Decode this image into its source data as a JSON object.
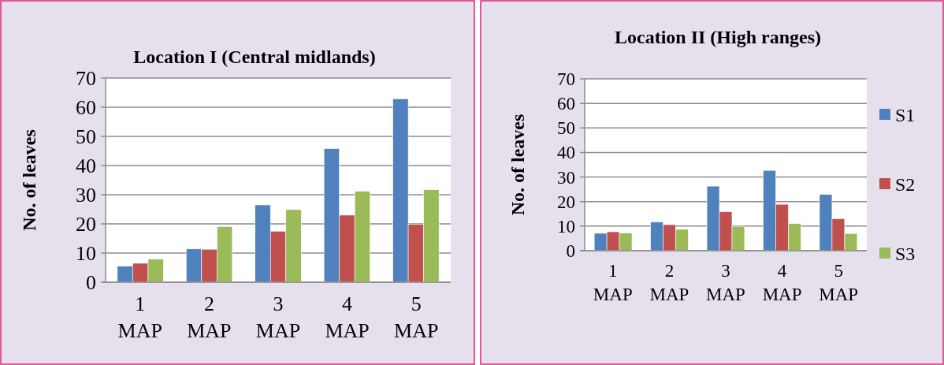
{
  "chart_data": [
    {
      "type": "bar",
      "title": "Location I (Central midlands)",
      "ylabel": "No. of leaves",
      "categories": [
        "1 MAP",
        "2 MAP",
        "3 MAP",
        "4 MAP",
        "5 MAP"
      ],
      "series": [
        {
          "color": "#4f81bd",
          "values": [
            5.5,
            11.4,
            26.5,
            45.8,
            62.9
          ]
        },
        {
          "color": "#c0504d",
          "values": [
            6.5,
            11.3,
            17.5,
            23.0,
            19.9
          ]
        },
        {
          "color": "#9bbb59",
          "values": [
            7.9,
            19.1,
            24.9,
            31.2,
            31.7
          ]
        }
      ],
      "ylim": [
        0,
        70
      ],
      "yticks": [
        0,
        10,
        20,
        30,
        40,
        50,
        60,
        70
      ],
      "grid": "y",
      "legend": false
    },
    {
      "type": "bar",
      "title": "Location II (High ranges)",
      "ylabel": "No. of leaves",
      "categories": [
        "1 MAP",
        "2 MAP",
        "3 MAP",
        "4 MAP",
        "5 MAP"
      ],
      "series": [
        {
          "name": "S1",
          "color": "#4f81bd",
          "values": [
            7.1,
            11.7,
            26.3,
            32.7,
            22.9
          ]
        },
        {
          "name": "S2",
          "color": "#c0504d",
          "values": [
            7.7,
            10.6,
            15.9,
            18.9,
            13.0
          ]
        },
        {
          "name": "S3",
          "color": "#9bbb59",
          "values": [
            7.2,
            8.7,
            9.9,
            11.1,
            7.0
          ]
        }
      ],
      "ylim": [
        0,
        70
      ],
      "yticks": [
        0,
        10,
        20,
        30,
        40,
        50,
        60,
        70
      ],
      "grid": "y",
      "legend": "right"
    }
  ]
}
